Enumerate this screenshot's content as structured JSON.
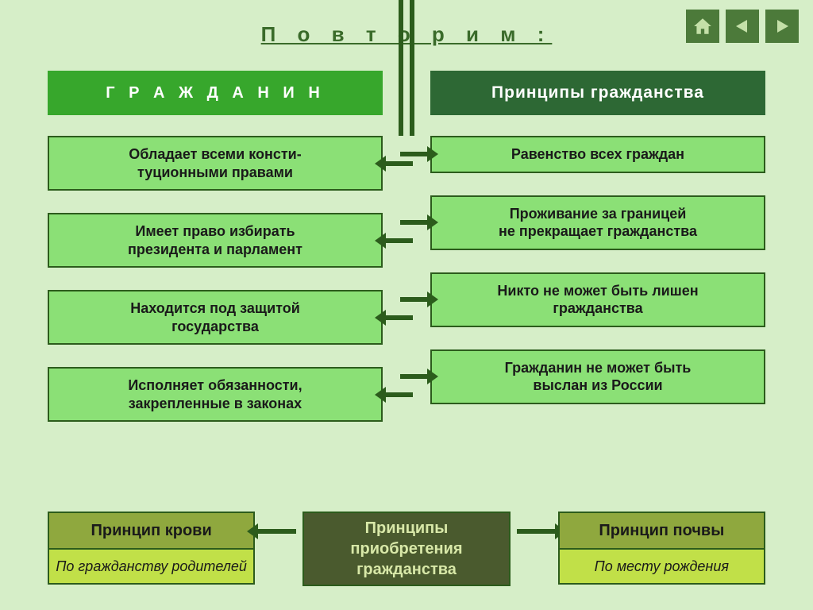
{
  "title": "П о в т о р и м :",
  "nav": {
    "home": "home-icon",
    "prev": "prev-icon",
    "next": "next-icon"
  },
  "left_column": {
    "header": "Г Р А Ж Д А Н И Н",
    "items": [
      "Обладает всеми консти-\nтуционными правами",
      "Имеет право избирать\nпрезидента и парламент",
      "Находится под защитой\nгосударства",
      "Исполняет обязанности,\nзакрепленные в законах"
    ]
  },
  "right_column": {
    "header": "Принципы гражданства",
    "items": [
      "Равенство всех граждан",
      "Проживание за границей\nне прекращает гражданства",
      "Никто не может быть лишен\nгражданства",
      "Гражданин не может быть\nвыслан из России"
    ]
  },
  "bottom": {
    "left": {
      "title": "Принцип крови",
      "sub": "По гражданству родителей"
    },
    "center": "Принципы приобретения гражданства",
    "right": {
      "title": "Принцип почвы",
      "sub": "По месту рождения"
    }
  },
  "colors": {
    "page_bg": "#d6eec8",
    "header_left": "#37a72c",
    "header_right": "#2d6834",
    "item_bg": "#8be076",
    "border": "#2c5c1c",
    "bottom_side_header": "#8fa83e",
    "bottom_sub": "#c1e048",
    "bottom_center": "#4a5a2e",
    "nav_btn": "#4c7a3a"
  }
}
